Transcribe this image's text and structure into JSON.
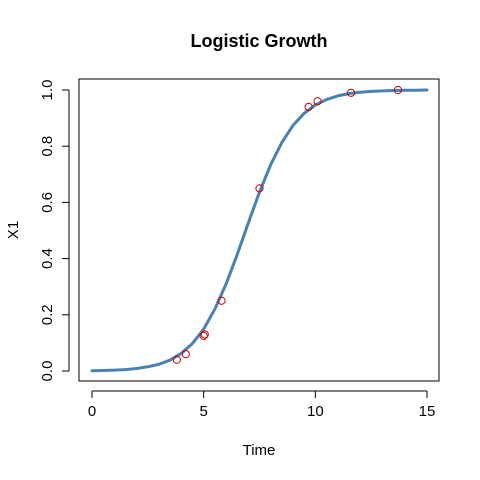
{
  "chart_data": {
    "type": "line",
    "title": "Logistic Growth",
    "xlabel": "Time",
    "ylabel": "X1",
    "xlim": [
      0,
      15
    ],
    "ylim": [
      0,
      1
    ],
    "x_ticks": [
      0,
      5,
      10,
      15
    ],
    "x_tick_labels": [
      "0",
      "5",
      "10",
      "15"
    ],
    "y_ticks": [
      0.0,
      0.2,
      0.4,
      0.6,
      0.8,
      1.0
    ],
    "y_tick_labels": [
      "0.0",
      "0.2",
      "0.4",
      "0.6",
      "0.8",
      "1.0"
    ],
    "grid": false,
    "legend": "none",
    "series": [
      {
        "kind": "line",
        "color": "#4682b4",
        "x": [
          0,
          0.5,
          1,
          1.5,
          2,
          2.5,
          3,
          3.5,
          4,
          4.5,
          5,
          5.5,
          6,
          6.5,
          7,
          7.5,
          8,
          8.5,
          9,
          9.5,
          10,
          10.5,
          11,
          11.5,
          12,
          12.5,
          13,
          13.5,
          14,
          14.5,
          15
        ],
        "values": [
          0.001,
          0.002,
          0.003,
          0.005,
          0.009,
          0.015,
          0.024,
          0.039,
          0.063,
          0.098,
          0.149,
          0.22,
          0.309,
          0.414,
          0.527,
          0.637,
          0.734,
          0.813,
          0.874,
          0.917,
          0.947,
          0.966,
          0.979,
          0.987,
          0.992,
          0.995,
          0.997,
          0.998,
          0.999,
          0.999,
          1.0
        ]
      },
      {
        "kind": "points",
        "color": "#cc0000",
        "x": [
          3.8,
          4.2,
          5.0,
          5.05,
          5.8,
          7.5,
          9.7,
          10.1,
          11.6,
          13.7
        ],
        "values": [
          0.04,
          0.06,
          0.125,
          0.13,
          0.25,
          0.65,
          0.94,
          0.96,
          0.99,
          1.0
        ]
      }
    ]
  }
}
